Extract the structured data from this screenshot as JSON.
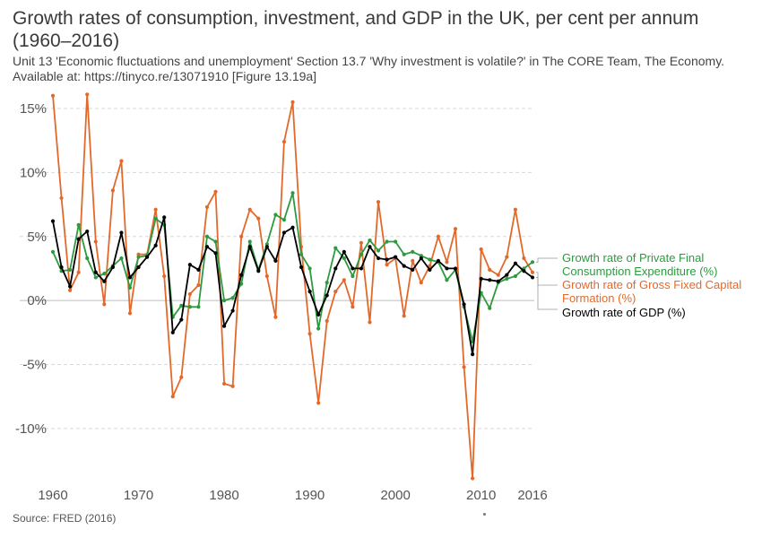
{
  "title": "Growth rates of consumption, investment, and GDP in the UK, per cent per annum (1960–2016)",
  "subtitle": "Unit 13 'Economic fluctuations and unemployment' Section 13.7 'Why investment is volatile?' in The CORE Team, The Economy. Available at: https://tinyco.re/13071910 [Figure 13.19a]",
  "source": "Source: FRED (2016)",
  "chart_data": {
    "type": "line",
    "x": [
      1960,
      1961,
      1962,
      1963,
      1964,
      1965,
      1966,
      1967,
      1968,
      1969,
      1970,
      1971,
      1972,
      1973,
      1974,
      1975,
      1976,
      1977,
      1978,
      1979,
      1980,
      1981,
      1982,
      1983,
      1984,
      1985,
      1986,
      1987,
      1988,
      1989,
      1990,
      1991,
      1992,
      1993,
      1994,
      1995,
      1996,
      1997,
      1998,
      1999,
      2000,
      2001,
      2002,
      2003,
      2004,
      2005,
      2006,
      2007,
      2008,
      2009,
      2010,
      2011,
      2012,
      2013,
      2014,
      2015,
      2016
    ],
    "xlim": [
      1960,
      2016
    ],
    "ylim": [
      -14,
      16
    ],
    "x_ticks": [
      "1960",
      "1970",
      "1980",
      "1990",
      "2000",
      "2010",
      "2016"
    ],
    "y_ticks": [
      {
        "value": 15,
        "label": "15%"
      },
      {
        "value": 10,
        "label": "10%"
      },
      {
        "value": 5,
        "label": "5%"
      },
      {
        "value": 0,
        "label": "0%"
      },
      {
        "value": -5,
        "label": "-5%"
      },
      {
        "value": -10,
        "label": "-10%"
      }
    ],
    "grid": true,
    "legend_position": "right, at line ends",
    "series": [
      {
        "name": "Growth rate of Private Final Consumption Expenditure (%)",
        "legend_lines": [
          "Growth rate of Private Final",
          "Consumption Expenditure (%)"
        ],
        "color": "#2e9a40",
        "values": [
          3.8,
          2.3,
          2.4,
          5.9,
          3.3,
          1.8,
          2.1,
          2.7,
          3.3,
          1.0,
          3.4,
          3.5,
          6.4,
          5.9,
          -1.3,
          -0.4,
          -0.5,
          -0.5,
          5.0,
          4.6,
          0.0,
          0.2,
          1.3,
          4.6,
          2.4,
          4.4,
          6.7,
          6.3,
          8.4,
          3.6,
          2.5,
          -2.2,
          1.4,
          4.1,
          3.3,
          1.9,
          3.6,
          4.7,
          3.9,
          4.6,
          4.6,
          3.6,
          3.8,
          3.5,
          3.2,
          3.0,
          1.6,
          2.4,
          -0.5,
          -3.2,
          0.6,
          -0.6,
          1.4,
          1.7,
          1.9,
          2.5,
          3.0
        ]
      },
      {
        "name": "Growth rate of Gross Fixed Capital Formation (%)",
        "legend_lines": [
          "Growth rate of Gross Fixed Capital",
          "Formation (%)"
        ],
        "color": "#e3692b",
        "values": [
          16.0,
          8.0,
          0.8,
          2.2,
          16.1,
          4.6,
          -0.3,
          8.6,
          10.9,
          -1.0,
          3.6,
          3.6,
          7.1,
          1.9,
          -7.5,
          -6.0,
          0.5,
          1.2,
          7.3,
          8.5,
          -6.5,
          -6.7,
          5.0,
          7.1,
          6.4,
          1.9,
          -1.3,
          12.4,
          15.5,
          4.2,
          -2.6,
          -8.0,
          -1.6,
          0.7,
          1.6,
          -0.5,
          4.5,
          -1.7,
          7.7,
          2.8,
          3.3,
          -1.2,
          3.1,
          1.4,
          2.7,
          5.0,
          3.0,
          5.6,
          -5.2,
          -13.9,
          4.0,
          2.4,
          2.0,
          3.4,
          7.1,
          3.3,
          2.2
        ]
      },
      {
        "name": "Growth rate of GDP (%)",
        "legend_lines": [
          "Growth rate of GDP (%)"
        ],
        "color": "#000000",
        "values": [
          6.2,
          2.6,
          1.1,
          4.8,
          5.4,
          2.2,
          1.5,
          2.6,
          5.3,
          1.8,
          2.6,
          3.4,
          4.3,
          6.5,
          -2.5,
          -1.5,
          2.8,
          2.4,
          4.2,
          3.7,
          -2.0,
          -0.8,
          2.0,
          4.2,
          2.3,
          4.2,
          3.1,
          5.3,
          5.7,
          2.6,
          0.7,
          -1.1,
          0.4,
          2.5,
          3.8,
          2.5,
          2.5,
          4.2,
          3.3,
          3.2,
          3.4,
          2.7,
          2.4,
          3.3,
          2.4,
          3.1,
          2.5,
          2.5,
          -0.3,
          -4.2,
          1.7,
          1.6,
          1.5,
          2.0,
          2.9,
          2.3,
          1.8
        ]
      }
    ]
  }
}
